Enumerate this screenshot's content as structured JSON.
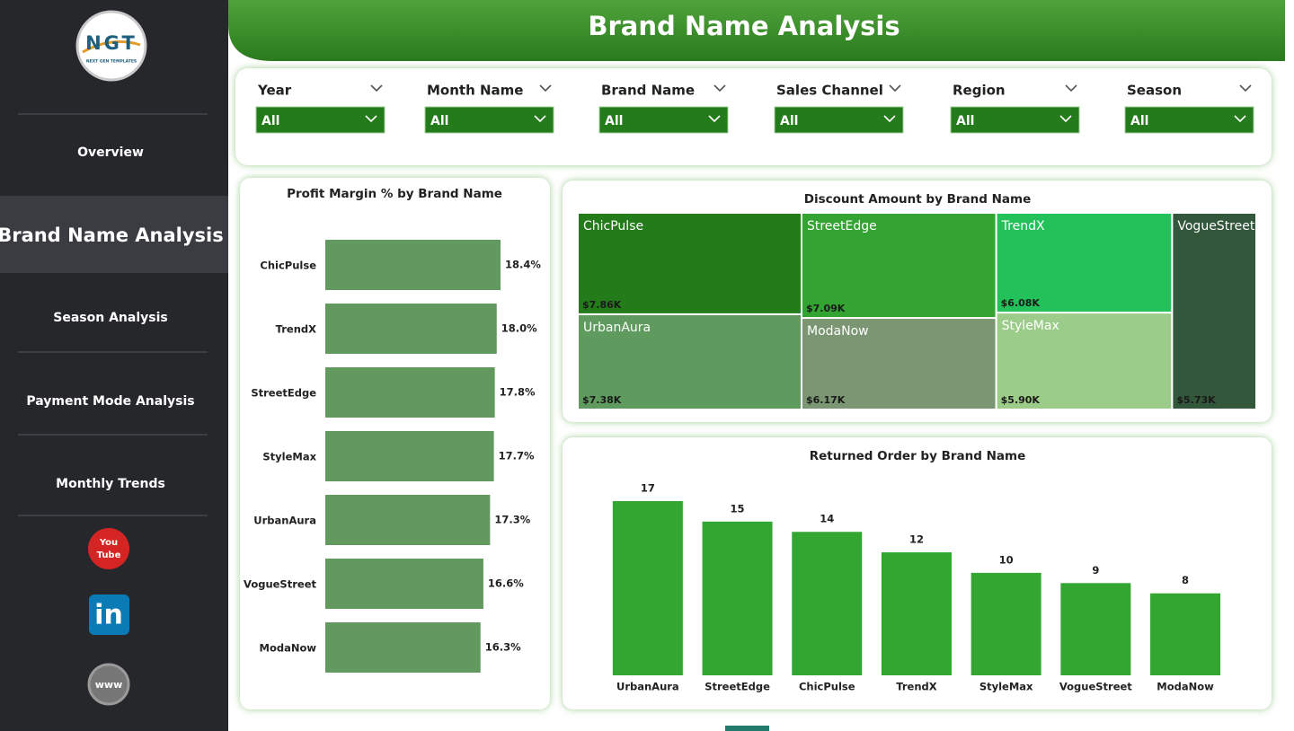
{
  "sidebar": {
    "logo": {
      "mark": "NGT",
      "tagline": "NEXT GEN TEMPLATES"
    },
    "nav": [
      "Overview",
      "Brand Name Analysis",
      "Season Analysis",
      "Payment Mode Analysis",
      "Monthly Trends"
    ],
    "icons": {
      "youtube_top": "You",
      "youtube_bottom": "Tube",
      "linkedin": "in",
      "web": "www"
    }
  },
  "header": {
    "title": "Brand Name Analysis"
  },
  "filters": [
    {
      "label": "Year",
      "value": "All"
    },
    {
      "label": "Month Name",
      "value": "All"
    },
    {
      "label": "Brand Name",
      "value": "All"
    },
    {
      "label": "Sales Channel",
      "value": "All"
    },
    {
      "label": "Region",
      "value": "All"
    },
    {
      "label": "Season",
      "value": "All"
    }
  ],
  "chart_data": [
    {
      "type": "hbar",
      "title": "Profit Margin % by Brand Name",
      "categories": [
        "ChicPulse",
        "TrendX",
        "StreetEdge",
        "StyleMax",
        "UrbanAura",
        "VogueStreet",
        "ModaNow"
      ],
      "values": [
        18.4,
        18.0,
        17.8,
        17.7,
        17.3,
        16.6,
        16.3
      ],
      "value_labels": [
        "18.4%",
        "18.0%",
        "17.8%",
        "17.7%",
        "17.3%",
        "16.6%",
        "16.3%"
      ],
      "color": "#62995f"
    },
    {
      "type": "treemap",
      "title": "Discount Amount by Brand Name",
      "categories": [
        "ChicPulse",
        "UrbanAura",
        "StreetEdge",
        "ModaNow",
        "TrendX",
        "StyleMax",
        "VogueStreet"
      ],
      "values": [
        7860,
        7380,
        7090,
        6170,
        6080,
        5900,
        5730
      ],
      "value_labels": [
        "$7.86K",
        "$7.38K",
        "$7.09K",
        "$6.17K",
        "$6.08K",
        "$5.90K",
        "$5.73K"
      ],
      "color": [
        "#237b1a",
        "#5f9a5e",
        "#33a432",
        "#7b9672",
        "#22c15a",
        "#9ccc8a",
        "#33573a"
      ]
    },
    {
      "type": "bar",
      "title": "Returned Order by Brand Name",
      "categories": [
        "UrbanAura",
        "StreetEdge",
        "ChicPulse",
        "TrendX",
        "StyleMax",
        "VogueStreet",
        "ModaNow"
      ],
      "values": [
        17,
        15,
        14,
        12,
        10,
        9,
        8
      ],
      "color": "#33a632"
    }
  ]
}
